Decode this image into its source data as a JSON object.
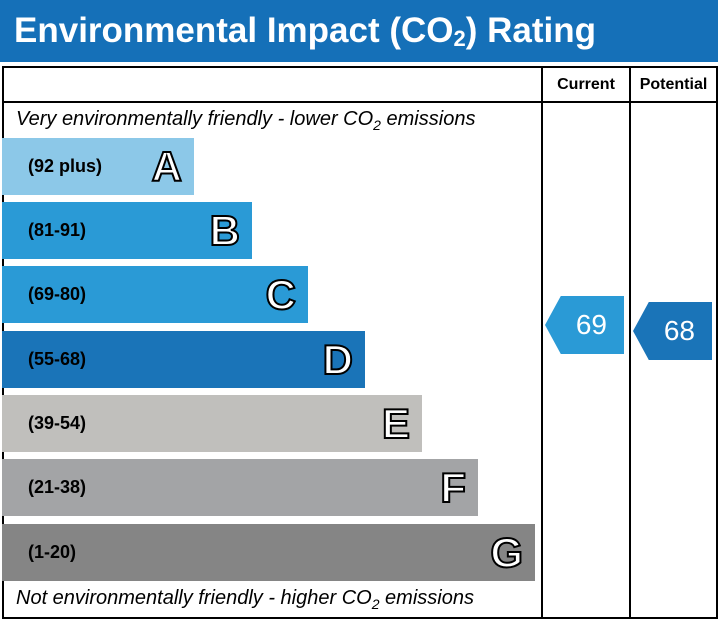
{
  "title": {
    "main": "Environmental Impact (CO",
    "sub": "2",
    "end": ") Rating"
  },
  "columns": {
    "current": "Current",
    "potential": "Potential"
  },
  "notes": {
    "top": {
      "pre": "Very environmentally friendly - lower CO",
      "sub": "2",
      "post": " emissions"
    },
    "bottom": {
      "pre": "Not environmentally friendly - higher CO",
      "sub": "2",
      "post": " emissions"
    }
  },
  "chart_data": {
    "type": "bar",
    "bands": [
      {
        "letter": "A",
        "range": "(92 plus)",
        "color": "#8cc8e8"
      },
      {
        "letter": "B",
        "range": "(81-91)",
        "color": "#2a9ad6"
      },
      {
        "letter": "C",
        "range": "(69-80)",
        "color": "#2a9ad6"
      },
      {
        "letter": "D",
        "range": "(55-68)",
        "color": "#1a74b8"
      },
      {
        "letter": "E",
        "range": "(39-54)",
        "color": "#c0bfbc"
      },
      {
        "letter": "F",
        "range": "(21-38)",
        "color": "#a3a4a6"
      },
      {
        "letter": "G",
        "range": "(1-20)",
        "color": "#858585"
      }
    ],
    "current": {
      "value": "69",
      "band": "C",
      "color": "#2a9ad6"
    },
    "potential": {
      "value": "68",
      "band": "D",
      "color": "#1a74b8"
    }
  }
}
